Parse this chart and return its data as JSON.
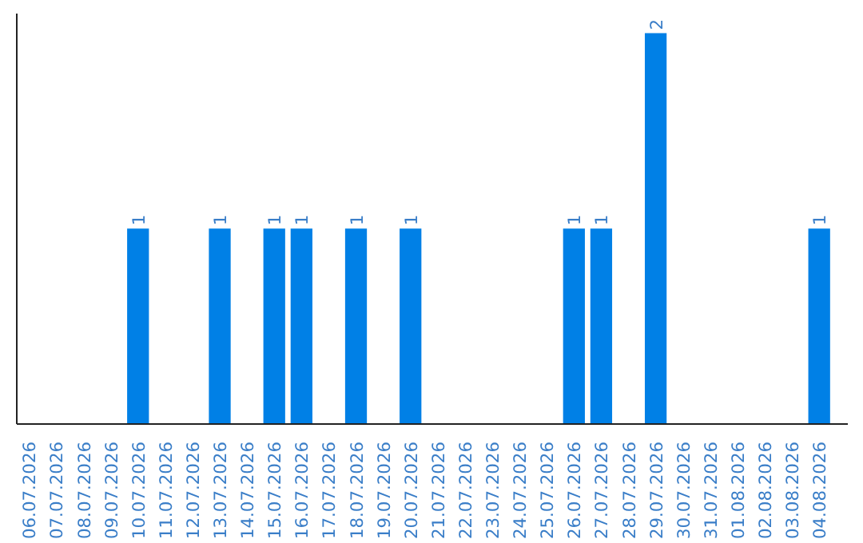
{
  "chart_data": {
    "type": "bar",
    "categories": [
      "06.07.2026",
      "07.07.2026",
      "08.07.2026",
      "09.07.2026",
      "10.07.2026",
      "11.07.2026",
      "12.07.2026",
      "13.07.2026",
      "14.07.2026",
      "15.07.2026",
      "16.07.2026",
      "17.07.2026",
      "18.07.2026",
      "19.07.2026",
      "20.07.2026",
      "21.07.2026",
      "22.07.2026",
      "23.07.2026",
      "24.07.2026",
      "25.07.2026",
      "26.07.2026",
      "27.07.2026",
      "28.07.2026",
      "29.07.2026",
      "30.07.2026",
      "31.07.2026",
      "01.08.2026",
      "02.08.2026",
      "03.08.2026",
      "04.08.2026"
    ],
    "values": [
      0,
      0,
      0,
      0,
      1,
      0,
      0,
      1,
      0,
      1,
      1,
      0,
      1,
      0,
      1,
      0,
      0,
      0,
      0,
      0,
      1,
      1,
      0,
      2,
      0,
      0,
      0,
      0,
      0,
      1
    ],
    "value_labels": [
      null,
      null,
      null,
      null,
      "1",
      null,
      null,
      "1",
      null,
      "1",
      "1",
      null,
      "1",
      null,
      "1",
      null,
      null,
      null,
      null,
      null,
      "1",
      "1",
      null,
      "2",
      null,
      null,
      null,
      null,
      null,
      "1"
    ],
    "color": "#0080e6",
    "grid": false
  }
}
